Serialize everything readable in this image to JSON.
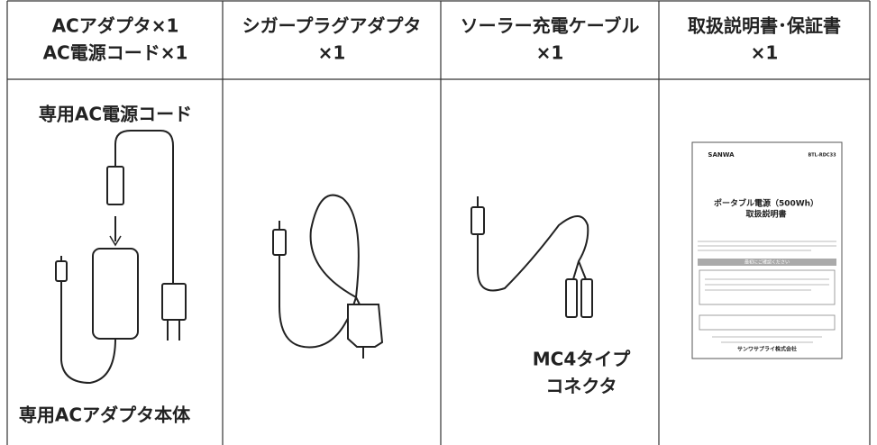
{
  "columns": [
    {
      "header": [
        "ACアダプタ×1",
        "AC電源コード×1"
      ],
      "labels": [
        "専用AC電源コード",
        "専用ACアダプタ本体"
      ]
    },
    {
      "header": [
        "シガープラグアダプタ",
        "×1"
      ]
    },
    {
      "header": [
        "ソーラー充電ケーブル",
        "×1"
      ],
      "labels": [
        "MC4タイプ",
        "コネクタ"
      ]
    },
    {
      "header": [
        "取扱説明書･保証書",
        "×1"
      ]
    }
  ],
  "manual": {
    "brand": "SANWA",
    "model": "BTL-RDC33",
    "title": [
      "ポータブル電源（500Wh）",
      "取扱説明書"
    ],
    "notice": "最初にご確認ください",
    "company": "サンワサプライ株式会社"
  }
}
